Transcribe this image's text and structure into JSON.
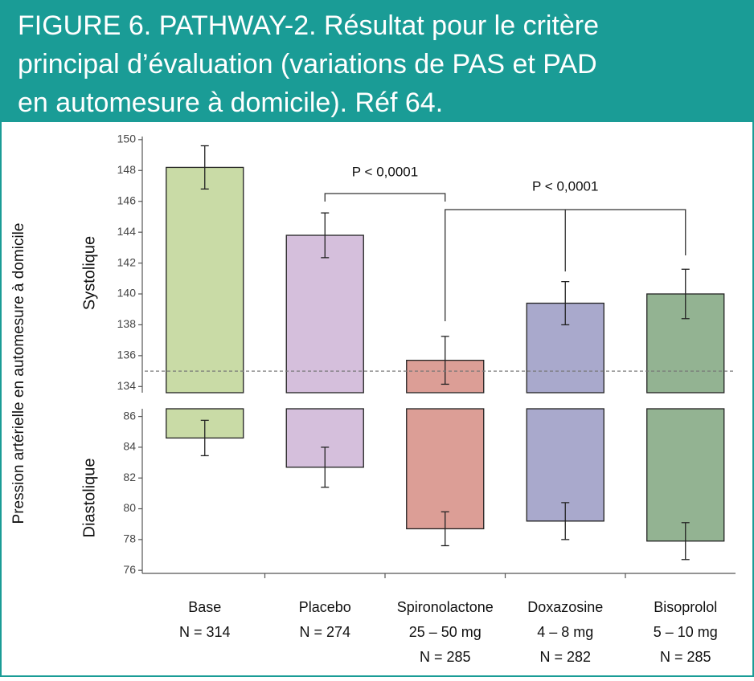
{
  "header": {
    "title": [
      "FIGURE 6. PATHWAY-2. Résultat pour le critère",
      "principal d’évaluation (variations de PAS et PAD",
      "en automesure à domicile). Réf 64."
    ]
  },
  "shared_ylabel": "Pression artérielle en automesure à domicile",
  "chart_data": [
    {
      "type": "bar",
      "ylabel": "Systolique",
      "bar_from": "bottom",
      "values": [
        148.2,
        143.8,
        135.7,
        139.4,
        140.0
      ],
      "errors": [
        1.4,
        1.45,
        1.55,
        1.4,
        1.6
      ],
      "colors": [
        "#c9dba6",
        "#d5bfdc",
        "#dc9e96",
        "#a9a9cc",
        "#93b392"
      ],
      "ylim": [
        133.6,
        150.2
      ],
      "yticks": [
        134,
        136,
        138,
        140,
        142,
        144,
        146,
        148,
        150
      ],
      "ref_line": 135,
      "annotations": [
        "P < 0,0001",
        "P < 0,0001"
      ]
    },
    {
      "type": "bar",
      "ylabel": "Diastolique",
      "bar_from": "top",
      "categories": [
        [
          "Base",
          "N = 314"
        ],
        [
          "Placebo",
          "N = 274"
        ],
        [
          "Spironolactone",
          "25 – 50 mg",
          "N = 285"
        ],
        [
          "Doxazosine",
          "4 – 8 mg",
          "N = 282"
        ],
        [
          "Bisoprolol",
          "5 – 10 mg",
          "N = 285"
        ]
      ],
      "values": [
        84.6,
        82.7,
        78.7,
        79.2,
        77.9
      ],
      "errors": [
        1.15,
        1.3,
        1.1,
        1.2,
        1.2
      ],
      "colors": [
        "#c9dba6",
        "#d5bfdc",
        "#dc9e96",
        "#a9a9cc",
        "#93b392"
      ],
      "ylim": [
        75.8,
        86.5
      ],
      "yticks": [
        76,
        78,
        80,
        82,
        84,
        86
      ]
    }
  ]
}
